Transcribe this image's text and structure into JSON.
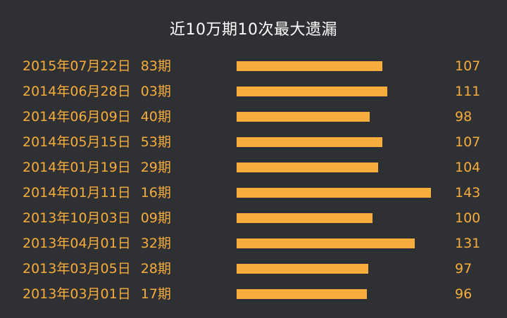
{
  "chart_data": {
    "type": "bar",
    "orientation": "horizontal",
    "title": "近10万期10次最大遗漏",
    "categories": [
      {
        "date": "2015年07月22日",
        "issue": "83期"
      },
      {
        "date": "2014年06月28日",
        "issue": "03期"
      },
      {
        "date": "2014年06月09日",
        "issue": "40期"
      },
      {
        "date": "2014年05月15日",
        "issue": "53期"
      },
      {
        "date": "2014年01月19日",
        "issue": "29期"
      },
      {
        "date": "2014年01月11日",
        "issue": "16期"
      },
      {
        "date": "2013年10月03日",
        "issue": "09期"
      },
      {
        "date": "2013年04月01日",
        "issue": "32期"
      },
      {
        "date": "2013年03月05日",
        "issue": "28期"
      },
      {
        "date": "2013年03月01日",
        "issue": "17期"
      }
    ],
    "values": [
      107,
      111,
      98,
      107,
      104,
      143,
      100,
      131,
      97,
      96
    ],
    "xlim": [
      0,
      143
    ],
    "grid": false,
    "legend": "none"
  },
  "colors": {
    "background": "#2f3033",
    "title": "#ffffff",
    "accent": "#f7ad3c"
  }
}
